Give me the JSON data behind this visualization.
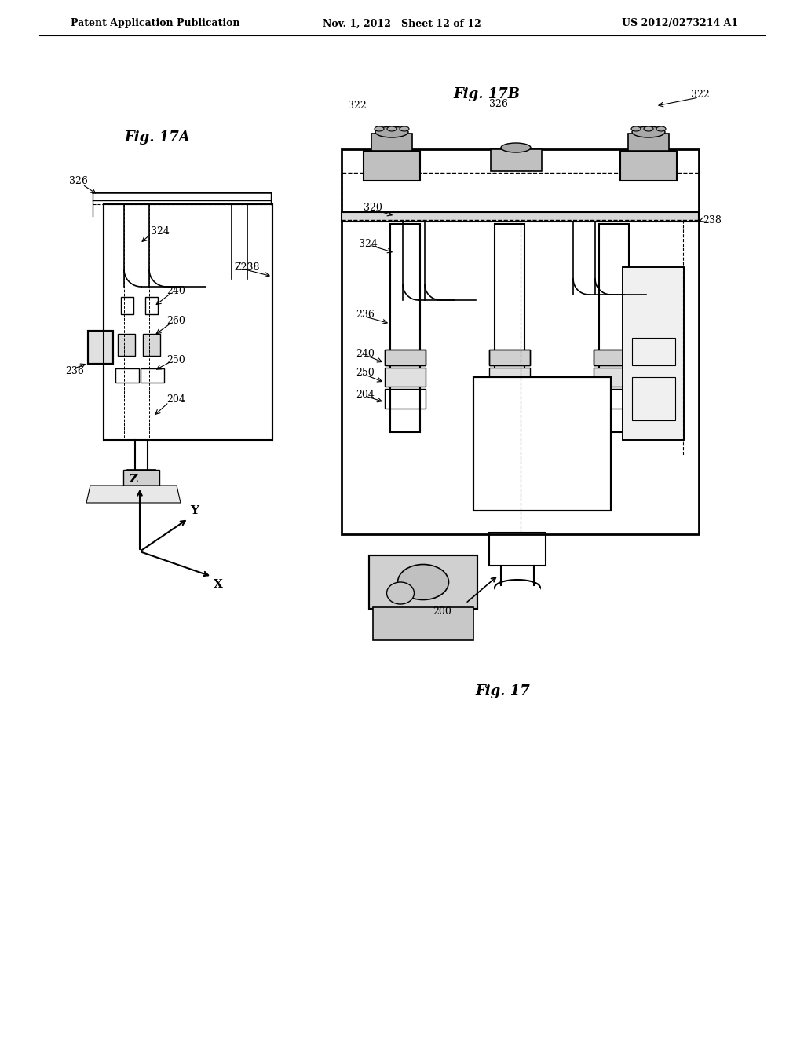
{
  "header_left": "Patent Application Publication",
  "header_mid": "Nov. 1, 2012   Sheet 12 of 12",
  "header_right": "US 2012/0273214 A1",
  "fig17a_label": "Fig. 17A",
  "fig17b_label": "Fig. 17B",
  "fig17_label": "Fig. 17",
  "background": "#ffffff",
  "text_color": "#000000",
  "line_color": "#000000"
}
